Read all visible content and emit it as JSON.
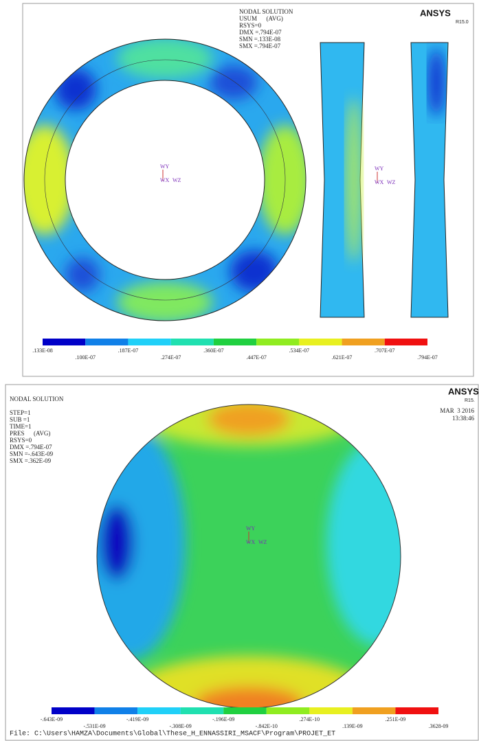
{
  "panel_top": {
    "brand": "ANSYS",
    "version": "R15.0",
    "info": [
      "NODAL SOLUTION",
      "USUM      (AVG)",
      "RSYS=0",
      "DMX =.794E-07",
      "SMN =.133E-08",
      "SMX =.794E-07"
    ],
    "triads": [
      {
        "y": "WY",
        "x": "WX",
        "z": "WZ"
      },
      {
        "y": "WY",
        "x": "WX",
        "z": "WZ"
      }
    ],
    "legend": [
      ".133E-08",
      ".100E-07",
      ".187E-07",
      ".274E-07",
      ".360E-07",
      ".447E-07",
      ".534E-07",
      ".621E-07",
      ".707E-07",
      ".794E-07"
    ]
  },
  "panel_bottom": {
    "brand": "ANSYS",
    "version": "R15.",
    "info": [
      "NODAL SOLUTION",
      "",
      "STEP=1",
      "SUB =1",
      "TIME=1",
      "PRES      (AVG)",
      "RSYS=0",
      "DMX =.794E-07",
      "SMN =-.643E-09",
      "SMX =.362E-09"
    ],
    "date": "MAR  3 2016",
    "time": "13:38:46",
    "triads": [
      {
        "y": "WY",
        "x": "WX",
        "z": "WZ"
      }
    ],
    "legend": [
      "-.643E-09",
      "-.531E-09",
      "-.419E-09",
      "-.308E-09",
      "-.196E-09",
      "-.842E-10",
      ".274E-10",
      ".139E-09",
      ".251E-09",
      ".3628-09"
    ],
    "file": "File: C:\\Users\\HAMZA\\Documents\\Global\\These_H_ENNASSIRI_MSACF\\Program\\PROJET_ET"
  }
}
